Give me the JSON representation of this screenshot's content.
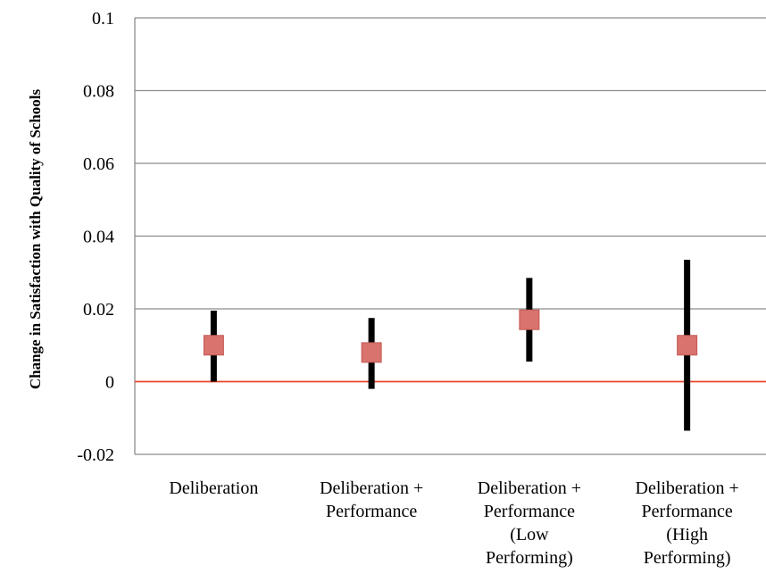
{
  "chart_data": {
    "type": "scatter",
    "title": "",
    "xlabel": "",
    "ylabel": "Change in  Satisfaction with Quality of Schools",
    "ylim": [
      -0.02,
      0.1
    ],
    "yticks": [
      -0.02,
      0,
      0.02,
      0.04,
      0.06,
      0.08,
      0.1
    ],
    "ytick_labels": [
      "-0.02",
      "0",
      "0.02",
      "0.04",
      "0.06",
      "0.08",
      "0.1"
    ],
    "grid": true,
    "legend": "none",
    "reference_line": 0,
    "categories": [
      [
        "Deliberation"
      ],
      [
        "Deliberation +",
        "Performance"
      ],
      [
        "Deliberation +",
        "Performance",
        "(Low",
        "Performing)"
      ],
      [
        "Deliberation +",
        "Performance",
        "(High",
        "Performing)"
      ]
    ],
    "series": [
      {
        "values": [
          0.01,
          0.008,
          0.017,
          0.01
        ],
        "lower": [
          0.0,
          -0.002,
          0.0055,
          -0.0135
        ],
        "upper": [
          0.0195,
          0.0175,
          0.0285,
          0.0335
        ]
      }
    ],
    "colors": {
      "marker": "#d9736d",
      "marker_edge": "#c45a55",
      "error_bar": "#000000",
      "zero_line": "#e8472a",
      "grid": "#8c8c8c",
      "axis": "#8c8c8c"
    }
  }
}
